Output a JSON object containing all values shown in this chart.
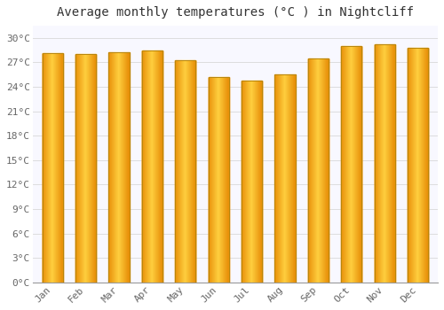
{
  "title": "Average monthly temperatures (°C ) in Nightcliff",
  "months": [
    "Jan",
    "Feb",
    "Mar",
    "Apr",
    "May",
    "Jun",
    "Jul",
    "Aug",
    "Sep",
    "Oct",
    "Nov",
    "Dec"
  ],
  "values": [
    28.1,
    28.0,
    28.2,
    28.5,
    27.3,
    25.2,
    24.8,
    25.5,
    27.5,
    29.0,
    29.2,
    28.8
  ],
  "bar_color_center": "#FFD040",
  "bar_color_edge": "#E8900A",
  "bar_border_color": "#B8860A",
  "background_color": "#FFFFFF",
  "plot_bg_color": "#F8F8FF",
  "grid_color": "#DDDDDD",
  "yticks": [
    0,
    3,
    6,
    9,
    12,
    15,
    18,
    21,
    24,
    27,
    30
  ],
  "ylim": [
    0,
    31.5
  ],
  "title_fontsize": 10,
  "tick_fontsize": 8,
  "bar_width": 0.62
}
